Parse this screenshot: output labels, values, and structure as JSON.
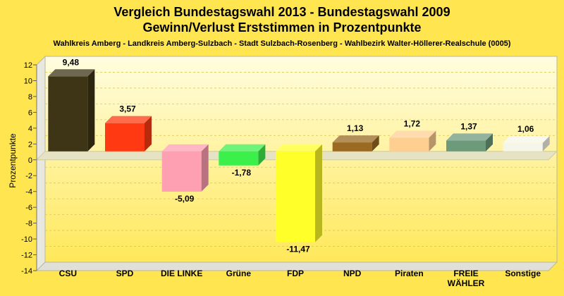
{
  "colors": {
    "background": "#ffe650",
    "plot_top": "#fffde0",
    "plot_bottom": "#ffe85a",
    "gridline": "#d9c860"
  },
  "chart_data": {
    "type": "bar",
    "title": "Vergleich Bundestagswahl 2013 - Bundestagswahl 2009",
    "subtitle": "Gewinn/Verlust Erststimmen in Prozentpunkte",
    "caption": "Wahlkreis Amberg - Landkreis Amberg-Sulzbach - Stadt Sulzbach-Rosenberg - Wahlbezirk Walter-Höllerer-Realschule (0005)",
    "ylabel": "Prozentpunkte",
    "xlabel": "",
    "ylim": [
      -14,
      12
    ],
    "yticks": [
      12,
      10,
      8,
      6,
      4,
      2,
      0,
      -2,
      -4,
      -6,
      -8,
      -10,
      -12,
      -14
    ],
    "grid": true,
    "categories": [
      "CSU",
      "SPD",
      "DIE LINKE",
      "Grüne",
      "FDP",
      "NPD",
      "Piraten",
      "FREIE WÄHLER",
      "Sonstige"
    ],
    "category_lines": [
      [
        "CSU"
      ],
      [
        "SPD"
      ],
      [
        "DIE LINKE"
      ],
      [
        "Grüne"
      ],
      [
        "FDP"
      ],
      [
        "NPD"
      ],
      [
        "Piraten"
      ],
      [
        "FREIE",
        "WÄHLER"
      ],
      [
        "Sonstige"
      ]
    ],
    "values": [
      9.48,
      3.57,
      -5.09,
      -1.78,
      -11.47,
      1.13,
      1.72,
      1.37,
      1.06
    ],
    "value_labels": [
      "9,48",
      "3,57",
      "-5,09",
      "-1,78",
      "-11,47",
      "1,13",
      "1,72",
      "1,37",
      "1,06"
    ],
    "bar_colors": [
      "#3d3516",
      "#ff3a12",
      "#ff9fb2",
      "#3cf04c",
      "#ffff2a",
      "#9a6a22",
      "#ffcf92",
      "#6e9a7c",
      "#f6f6e8"
    ]
  }
}
